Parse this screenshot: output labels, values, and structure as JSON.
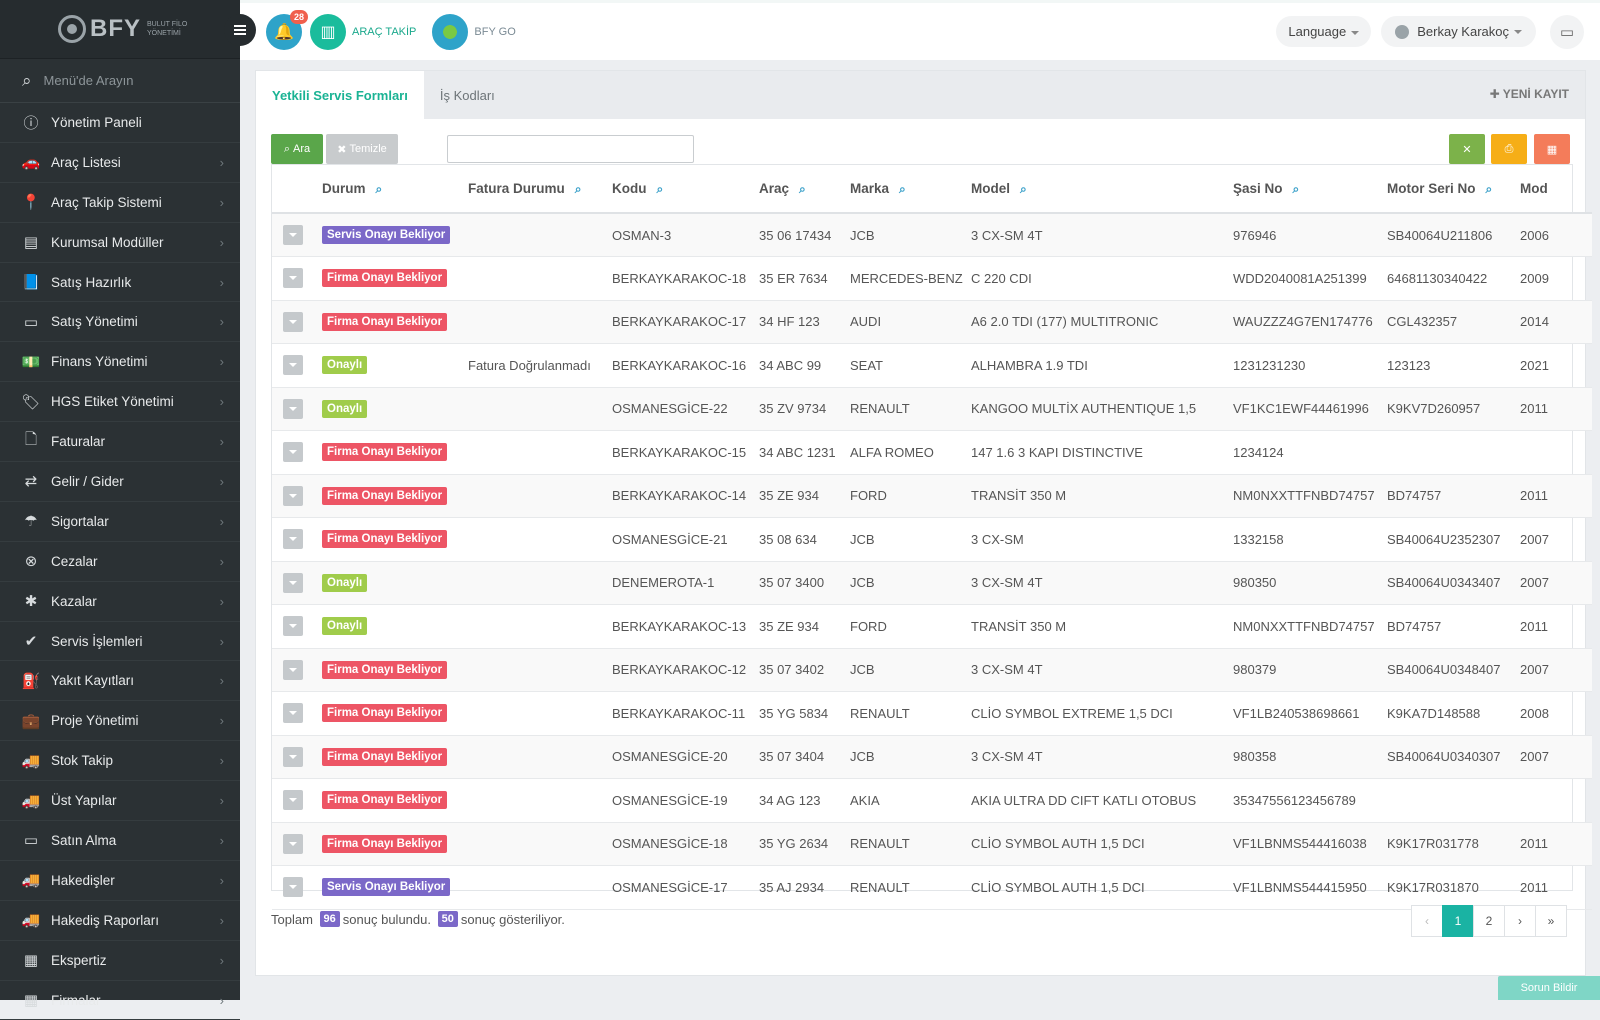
{
  "brand": {
    "name": "BFY",
    "subtitle": "BULUT FİLO YÖNETİMİ"
  },
  "sidebar": {
    "search_placeholder": "Menü'de Arayın",
    "items": [
      {
        "label": "Yönetim Paneli",
        "icon": "info-icon",
        "glyph": "ⓘ",
        "arrow": false
      },
      {
        "label": "Araç Listesi",
        "icon": "car-icon",
        "glyph": "🚗",
        "arrow": true
      },
      {
        "label": "Araç Takip Sistemi",
        "icon": "map-marker-icon",
        "glyph": "📍",
        "arrow": true
      },
      {
        "label": "Kurumsal Modüller",
        "icon": "server-icon",
        "glyph": "▤",
        "arrow": true
      },
      {
        "label": "Satış Hazırlık",
        "icon": "book-icon",
        "glyph": "📘",
        "arrow": true
      },
      {
        "label": "Satış Yönetimi",
        "icon": "credit-card-icon",
        "glyph": "▭",
        "arrow": true
      },
      {
        "label": "Finans Yönetimi",
        "icon": "money-icon",
        "glyph": "💵",
        "arrow": true
      },
      {
        "label": "HGS Etiket Yönetimi",
        "icon": "tag-icon",
        "glyph": "🏷",
        "arrow": true
      },
      {
        "label": "Faturalar",
        "icon": "file-icon",
        "glyph": "🗋",
        "arrow": true
      },
      {
        "label": "Gelir / Gider",
        "icon": "exchange-icon",
        "glyph": "⇄",
        "arrow": true
      },
      {
        "label": "Sigortalar",
        "icon": "umbrella-icon",
        "glyph": "☂",
        "arrow": true
      },
      {
        "label": "Cezalar",
        "icon": "times-circle-icon",
        "glyph": "⊗",
        "arrow": true
      },
      {
        "label": "Kazalar",
        "icon": "crash-icon",
        "glyph": "✱",
        "arrow": true
      },
      {
        "label": "Servis İşlemleri",
        "icon": "check-circle-icon",
        "glyph": "✔",
        "arrow": true
      },
      {
        "label": "Yakıt Kayıtları",
        "icon": "fuel-icon",
        "glyph": "⛽",
        "arrow": true
      },
      {
        "label": "Proje Yönetimi",
        "icon": "briefcase-icon",
        "glyph": "💼",
        "arrow": true
      },
      {
        "label": "Stok Takip",
        "icon": "truck-icon",
        "glyph": "🚚",
        "arrow": true
      },
      {
        "label": "Üst Yapılar",
        "icon": "truck-icon",
        "glyph": "🚚",
        "arrow": true
      },
      {
        "label": "Satın Alma",
        "icon": "credit-card-icon",
        "glyph": "▭",
        "arrow": true
      },
      {
        "label": "Hakedişler",
        "icon": "truck-icon",
        "glyph": "🚚",
        "arrow": true
      },
      {
        "label": "Hakediş Raporları",
        "icon": "truck-icon",
        "glyph": "🚚",
        "arrow": true
      },
      {
        "label": "Ekspertiz",
        "icon": "list-icon",
        "glyph": "▦",
        "arrow": true
      },
      {
        "label": "Firmalar",
        "icon": "building-icon",
        "glyph": "▦",
        "arrow": true
      }
    ]
  },
  "topbar": {
    "notification_count": "28",
    "arac_takip": "ARAÇ TAKİP",
    "bfy_go": "BFY GO",
    "language": "Language",
    "user_name": "Berkay Karakoç"
  },
  "tabs": [
    {
      "label": "Yetkili Servis Formları",
      "active": true
    },
    {
      "label": "İş Kodları",
      "active": false
    }
  ],
  "new_record": "YENİ KAYIT",
  "toolbar": {
    "search_label": "Ara",
    "clear_label": "Temizle",
    "search_value": ""
  },
  "table": {
    "headers": [
      "Durum",
      "Fatura Durumu",
      "Kodu",
      "Araç",
      "Marka",
      "Model",
      "Şasi No",
      "Motor Seri No",
      "Mod"
    ],
    "rows": [
      {
        "durum": "Servis Onayı Bekliyor",
        "status": "servis",
        "fatura": "",
        "kodu": "OSMAN-3",
        "arac": "35 06 17434",
        "marka": "JCB",
        "model": "3 CX-SM 4T",
        "sasi": "976946",
        "motor": "SB40064U211806",
        "mod": "2006"
      },
      {
        "durum": "Firma Onayı Bekliyor",
        "status": "firma",
        "fatura": "",
        "kodu": "BERKAYKARAKOC-18",
        "arac": "35 ER 7634",
        "marka": "MERCEDES-BENZ",
        "model": "C 220 CDI",
        "sasi": "WDD2040081A251399",
        "motor": "64681130340422",
        "mod": "2009"
      },
      {
        "durum": "Firma Onayı Bekliyor",
        "status": "firma",
        "fatura": "",
        "kodu": "BERKAYKARAKOC-17",
        "arac": "34 HF 123",
        "marka": "AUDI",
        "model": "A6 2.0 TDI (177) MULTITRONIC",
        "sasi": "WAUZZZ4G7EN174776",
        "motor": "CGL432357",
        "mod": "2014"
      },
      {
        "durum": "Onaylı",
        "status": "onayli",
        "fatura": "Fatura Doğrulanmadı",
        "kodu": "BERKAYKARAKOC-16",
        "arac": "34 ABC 99",
        "marka": "SEAT",
        "model": "ALHAMBRA 1.9 TDI",
        "sasi": "1231231230",
        "motor": "123123",
        "mod": "2021"
      },
      {
        "durum": "Onaylı",
        "status": "onayli",
        "fatura": "",
        "kodu": "OSMANESGİCE-22",
        "arac": "35 ZV 9734",
        "marka": "RENAULT",
        "model": "KANGOO MULTİX AUTHENTIQUE 1,5",
        "sasi": "VF1KC1EWF44461996",
        "motor": "K9KV7D260957",
        "mod": "2011"
      },
      {
        "durum": "Firma Onayı Bekliyor",
        "status": "firma",
        "fatura": "",
        "kodu": "BERKAYKARAKOC-15",
        "arac": "34 ABC 1231",
        "marka": "ALFA ROMEO",
        "model": "147 1.6 3 KAPI DISTINCTIVE",
        "sasi": "1234124",
        "motor": "",
        "mod": ""
      },
      {
        "durum": "Firma Onayı Bekliyor",
        "status": "firma",
        "fatura": "",
        "kodu": "BERKAYKARAKOC-14",
        "arac": "35 ZE 934",
        "marka": "FORD",
        "model": "TRANSİT 350 M",
        "sasi": "NM0NXXTTFNBD74757",
        "motor": "BD74757",
        "mod": "2011"
      },
      {
        "durum": "Firma Onayı Bekliyor",
        "status": "firma",
        "fatura": "",
        "kodu": "OSMANESGİCE-21",
        "arac": "35 08 634",
        "marka": "JCB",
        "model": "3 CX-SM",
        "sasi": "1332158",
        "motor": "SB40064U2352307",
        "mod": "2007"
      },
      {
        "durum": "Onaylı",
        "status": "onayli",
        "fatura": "",
        "kodu": "DENEMEROTA-1",
        "arac": "35 07 3400",
        "marka": "JCB",
        "model": "3 CX-SM 4T",
        "sasi": "980350",
        "motor": "SB40064U0343407",
        "mod": "2007"
      },
      {
        "durum": "Onaylı",
        "status": "onayli",
        "fatura": "",
        "kodu": "BERKAYKARAKOC-13",
        "arac": "35 ZE 934",
        "marka": "FORD",
        "model": "TRANSİT 350 M",
        "sasi": "NM0NXXTTFNBD74757",
        "motor": "BD74757",
        "mod": "2011"
      },
      {
        "durum": "Firma Onayı Bekliyor",
        "status": "firma",
        "fatura": "",
        "kodu": "BERKAYKARAKOC-12",
        "arac": "35 07 3402",
        "marka": "JCB",
        "model": "3 CX-SM 4T",
        "sasi": "980379",
        "motor": "SB40064U0348407",
        "mod": "2007"
      },
      {
        "durum": "Firma Onayı Bekliyor",
        "status": "firma",
        "fatura": "",
        "kodu": "BERKAYKARAKOC-11",
        "arac": "35 YG 5834",
        "marka": "RENAULT",
        "model": "CLİO SYMBOL EXTREME 1,5 DCI",
        "sasi": "VF1LB240538698661",
        "motor": "K9KA7D148588",
        "mod": "2008"
      },
      {
        "durum": "Firma Onayı Bekliyor",
        "status": "firma",
        "fatura": "",
        "kodu": "OSMANESGİCE-20",
        "arac": "35 07 3404",
        "marka": "JCB",
        "model": "3 CX-SM 4T",
        "sasi": "980358",
        "motor": "SB40064U0340307",
        "mod": "2007"
      },
      {
        "durum": "Firma Onayı Bekliyor",
        "status": "firma",
        "fatura": "",
        "kodu": "OSMANESGİCE-19",
        "arac": "34 AG 123",
        "marka": "AKIA",
        "model": "AKIA ULTRA DD CIFT KATLI OTOBUS",
        "sasi": "35347556123456789",
        "motor": "",
        "mod": ""
      },
      {
        "durum": "Firma Onayı Bekliyor",
        "status": "firma",
        "fatura": "",
        "kodu": "OSMANESGİCE-18",
        "arac": "35 YG 2634",
        "marka": "RENAULT",
        "model": "CLİO SYMBOL AUTH 1,5 DCI",
        "sasi": "VF1LBNMS544416038",
        "motor": "K9K17R031778",
        "mod": "2011"
      },
      {
        "durum": "Servis Onayı Bekliyor",
        "status": "servis",
        "fatura": "",
        "kodu": "OSMANESGİCE-17",
        "arac": "35 AJ 2934",
        "marka": "RENAULT",
        "model": "CLİO SYMBOL AUTH 1,5 DCI",
        "sasi": "VF1LBNMS544415950",
        "motor": "K9K17R031870",
        "mod": "2011"
      }
    ]
  },
  "footer": {
    "total_prefix": "Toplam",
    "total": "96",
    "found_text": "sonuç bulundu.",
    "shown": "50",
    "shown_text": "sonuç gösteriliyor."
  },
  "pagination": [
    "‹",
    "1",
    "2",
    "›",
    "»"
  ],
  "report_button": "Sorun Bildir"
}
